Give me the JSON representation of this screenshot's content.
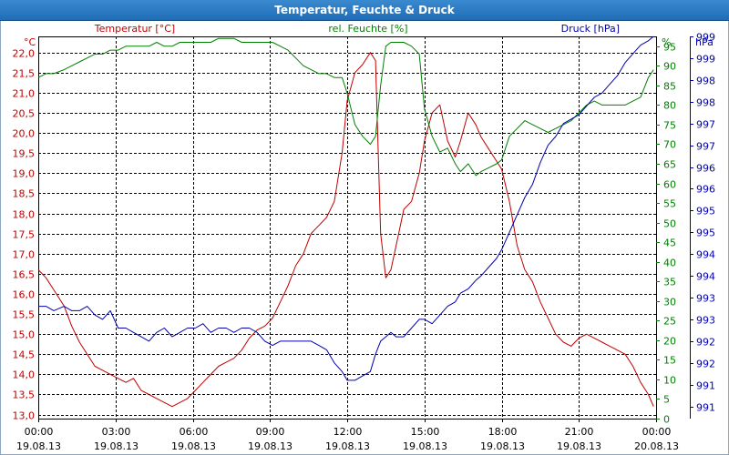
{
  "title": "Temperatur, Feuchte & Druck",
  "colors": {
    "temperature": "#c00000",
    "humidity": "#008000",
    "pressure": "#0000b0",
    "grid": "#000000",
    "title_bg": "#2a7ac4"
  },
  "chart_data": {
    "type": "line",
    "title": "Temperatur, Feuchte & Druck",
    "xlabel": "",
    "x_ticks": [
      {
        "time": "00:00",
        "date": "19.08.13"
      },
      {
        "time": "03:00",
        "date": "19.08.13"
      },
      {
        "time": "06:00",
        "date": "19.08.13"
      },
      {
        "time": "09:00",
        "date": "19.08.13"
      },
      {
        "time": "12:00",
        "date": "19.08.13"
      },
      {
        "time": "15:00",
        "date": "19.08.13"
      },
      {
        "time": "18:00",
        "date": "19.08.13"
      },
      {
        "time": "21:00",
        "date": "19.08.13"
      },
      {
        "time": "00:00",
        "date": "20.08.13"
      }
    ],
    "xlim": [
      0,
      24
    ],
    "axes": {
      "temperature": {
        "label": "Temperatur [°C]",
        "unit": "°C",
        "ylim": [
          12.9,
          22.4
        ],
        "ticks": [
          "13,0",
          "13,5",
          "14,0",
          "14,5",
          "15,0",
          "15,5",
          "16,0",
          "16,5",
          "17,0",
          "17,5",
          "18,0",
          "18,5",
          "19,0",
          "19,5",
          "20,0",
          "20,5",
          "21,0",
          "21,5",
          "22,0"
        ],
        "tick_values": [
          13.0,
          13.5,
          14.0,
          14.5,
          15.0,
          15.5,
          16.0,
          16.5,
          17.0,
          17.5,
          18.0,
          18.5,
          19.0,
          19.5,
          20.0,
          20.5,
          21.0,
          21.5,
          22.0
        ]
      },
      "humidity": {
        "label": "rel. Feuchte [%]",
        "unit": "%",
        "ylim": [
          0,
          97.5
        ],
        "ticks": [
          "0",
          "5",
          "10",
          "15",
          "20",
          "25",
          "30",
          "35",
          "40",
          "45",
          "50",
          "55",
          "60",
          "65",
          "70",
          "75",
          "80",
          "85",
          "90",
          "95"
        ],
        "tick_values": [
          0,
          5,
          10,
          15,
          20,
          25,
          30,
          35,
          40,
          45,
          50,
          55,
          60,
          65,
          70,
          75,
          80,
          85,
          90,
          95
        ]
      },
      "pressure": {
        "label": "Druck [hPa]",
        "unit": "hPa",
        "ylim": [
          990.62,
          999.4
        ],
        "ticks": [
          "991",
          "991",
          "992",
          "992",
          "993",
          "993",
          "994",
          "994",
          "995",
          "995",
          "996",
          "996",
          "997",
          "997",
          "998",
          "998",
          "999",
          "999"
        ],
        "tick_values": [
          990.9,
          991.4,
          991.9,
          992.4,
          992.9,
          993.4,
          993.9,
          994.4,
          994.9,
          995.4,
          995.9,
          996.4,
          996.9,
          997.4,
          997.9,
          998.4,
          998.9,
          999.4
        ]
      }
    },
    "series": [
      {
        "name": "Temperatur",
        "axis": "temperature",
        "x": [
          0,
          0.3,
          0.6,
          1.0,
          1.3,
          1.6,
          1.9,
          2.2,
          2.5,
          2.8,
          3.1,
          3.4,
          3.7,
          4.0,
          4.3,
          4.6,
          4.9,
          5.2,
          5.5,
          5.8,
          6.1,
          6.4,
          6.7,
          7.0,
          7.3,
          7.6,
          7.9,
          8.2,
          8.5,
          8.8,
          9.1,
          9.4,
          9.7,
          10.0,
          10.3,
          10.6,
          10.9,
          11.2,
          11.5,
          11.8,
          12.0,
          12.3,
          12.6,
          12.9,
          13.1,
          13.3,
          13.5,
          13.7,
          13.9,
          14.2,
          14.5,
          14.8,
          15.0,
          15.3,
          15.6,
          15.9,
          16.2,
          16.4,
          16.7,
          17.0,
          17.2,
          17.5,
          17.8,
          18.0,
          18.3,
          18.6,
          18.9,
          19.2,
          19.5,
          19.8,
          20.1,
          20.4,
          20.7,
          21.0,
          21.3,
          21.6,
          21.9,
          22.2,
          22.5,
          22.8,
          23.1,
          23.4,
          23.7,
          23.9
        ],
        "values": [
          16.6,
          16.4,
          16.1,
          15.7,
          15.2,
          14.8,
          14.5,
          14.2,
          14.1,
          14.0,
          13.9,
          13.8,
          13.9,
          13.6,
          13.5,
          13.4,
          13.3,
          13.2,
          13.3,
          13.4,
          13.6,
          13.8,
          14.0,
          14.2,
          14.3,
          14.4,
          14.6,
          14.9,
          15.1,
          15.2,
          15.4,
          15.8,
          16.2,
          16.7,
          17.0,
          17.5,
          17.7,
          17.9,
          18.3,
          19.5,
          20.8,
          21.5,
          21.7,
          22.0,
          21.8,
          17.5,
          16.4,
          16.6,
          17.2,
          18.1,
          18.3,
          19.0,
          19.8,
          20.5,
          20.7,
          19.8,
          19.4,
          19.8,
          20.5,
          20.2,
          19.9,
          19.6,
          19.3,
          19.1,
          18.3,
          17.2,
          16.6,
          16.3,
          15.8,
          15.4,
          15.0,
          14.8,
          14.7,
          14.9,
          15.0,
          14.9,
          14.8,
          14.7,
          14.6,
          14.5,
          14.2,
          13.8,
          13.5,
          13.2
        ]
      },
      {
        "name": "rel. Feuchte",
        "axis": "humidity",
        "x": [
          0,
          0.3,
          0.6,
          1.0,
          1.3,
          1.6,
          1.9,
          2.2,
          2.5,
          2.8,
          3.1,
          3.4,
          3.7,
          4.0,
          4.3,
          4.6,
          4.9,
          5.2,
          5.5,
          5.8,
          6.1,
          6.4,
          6.7,
          7.0,
          7.3,
          7.6,
          7.9,
          8.2,
          8.5,
          8.8,
          9.1,
          9.4,
          9.7,
          10.0,
          10.3,
          10.6,
          10.9,
          11.2,
          11.5,
          11.8,
          12.0,
          12.3,
          12.6,
          12.9,
          13.1,
          13.3,
          13.5,
          13.7,
          13.9,
          14.2,
          14.5,
          14.8,
          15.0,
          15.3,
          15.6,
          15.9,
          16.2,
          16.4,
          16.7,
          17.0,
          17.2,
          17.5,
          17.8,
          18.0,
          18.3,
          18.6,
          18.9,
          19.2,
          19.5,
          19.8,
          20.1,
          20.4,
          20.7,
          21.0,
          21.3,
          21.6,
          21.9,
          22.2,
          22.5,
          22.8,
          23.1,
          23.4,
          23.7,
          23.9
        ],
        "values": [
          87,
          88,
          88,
          89,
          90,
          91,
          92,
          93,
          93,
          94,
          94,
          95,
          95,
          95,
          95,
          96,
          95,
          95,
          96,
          96,
          96,
          96,
          96,
          97,
          97,
          97,
          96,
          96,
          96,
          96,
          96,
          95,
          94,
          92,
          90,
          89,
          88,
          88,
          87,
          87,
          83,
          75,
          72,
          70,
          72,
          85,
          95,
          96,
          96,
          96,
          95,
          93,
          79,
          72,
          68,
          69,
          65,
          63,
          65,
          62,
          63,
          64,
          65,
          66,
          72,
          74,
          76,
          75,
          74,
          73,
          74,
          75,
          76,
          78,
          80,
          81,
          80,
          80,
          80,
          80,
          81,
          82,
          87,
          89
        ]
      },
      {
        "name": "Druck",
        "axis": "pressure",
        "x": [
          0,
          0.3,
          0.6,
          1.0,
          1.3,
          1.6,
          1.9,
          2.2,
          2.5,
          2.8,
          3.1,
          3.4,
          3.7,
          4.0,
          4.3,
          4.6,
          4.9,
          5.2,
          5.5,
          5.8,
          6.1,
          6.4,
          6.7,
          7.0,
          7.3,
          7.6,
          7.9,
          8.2,
          8.5,
          8.8,
          9.1,
          9.4,
          9.7,
          10.0,
          10.3,
          10.6,
          10.9,
          11.2,
          11.5,
          11.8,
          12.0,
          12.3,
          12.6,
          12.9,
          13.1,
          13.3,
          13.5,
          13.7,
          13.9,
          14.2,
          14.5,
          14.8,
          15.0,
          15.3,
          15.6,
          15.9,
          16.2,
          16.4,
          16.7,
          17.0,
          17.2,
          17.5,
          17.8,
          18.0,
          18.3,
          18.6,
          18.9,
          19.2,
          19.5,
          19.8,
          20.1,
          20.4,
          20.7,
          21.0,
          21.3,
          21.6,
          21.9,
          22.2,
          22.5,
          22.8,
          23.1,
          23.4,
          23.7,
          23.9
        ],
        "values": [
          993.2,
          993.2,
          993.1,
          993.2,
          993.1,
          993.1,
          993.2,
          993.0,
          992.9,
          993.1,
          992.7,
          992.7,
          992.6,
          992.5,
          992.4,
          992.6,
          992.7,
          992.5,
          992.6,
          992.7,
          992.7,
          992.8,
          992.6,
          992.7,
          992.7,
          992.6,
          992.7,
          992.7,
          992.6,
          992.4,
          992.3,
          992.4,
          992.4,
          992.4,
          992.4,
          992.4,
          992.3,
          992.2,
          991.9,
          991.7,
          991.5,
          991.5,
          991.6,
          991.7,
          992.1,
          992.4,
          992.5,
          992.6,
          992.5,
          992.5,
          992.7,
          992.9,
          992.9,
          992.8,
          993.0,
          993.2,
          993.3,
          993.5,
          993.6,
          993.8,
          993.9,
          994.1,
          994.3,
          994.5,
          994.9,
          995.3,
          995.7,
          996.0,
          996.5,
          996.9,
          997.1,
          997.4,
          997.5,
          997.6,
          997.8,
          998.0,
          998.1,
          998.3,
          998.5,
          998.8,
          999.0,
          999.2,
          999.3,
          999.4
        ]
      }
    ]
  }
}
